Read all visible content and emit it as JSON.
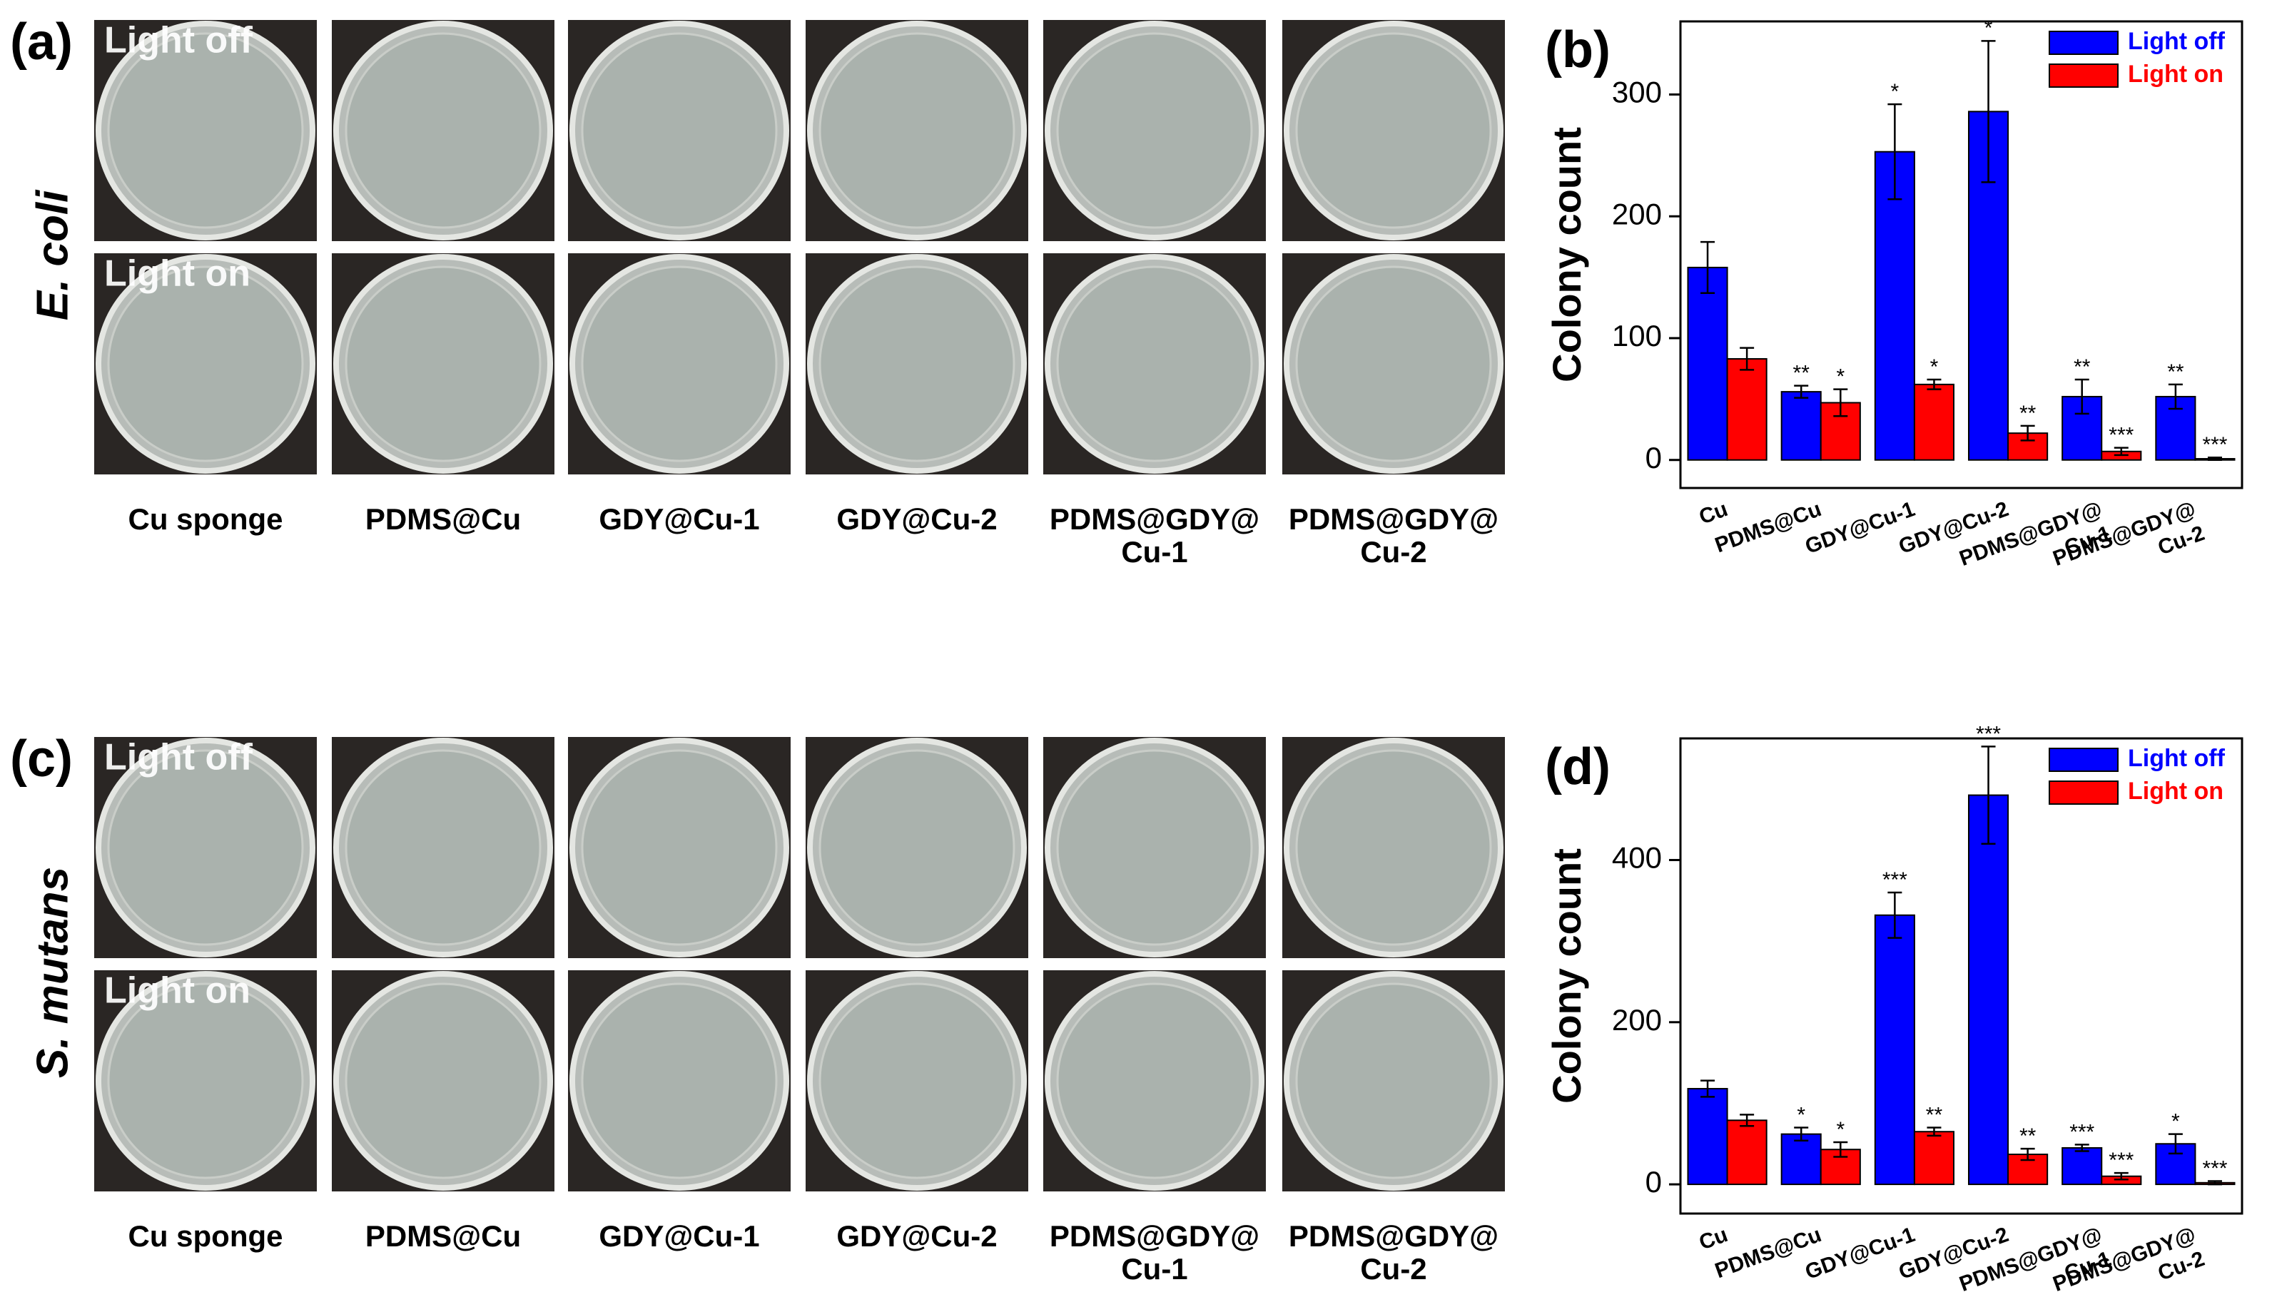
{
  "photo_panels": [
    {
      "label": "(a)",
      "organism": "E. coli",
      "rows": [
        "Light off",
        "Light on"
      ],
      "columns": [
        "Cu sponge",
        "PDMS@Cu",
        "GDY@Cu-1",
        "GDY@Cu-2",
        "PDMS@GDY@\nCu-1",
        "PDMS@GDY@\nCu-2"
      ]
    },
    {
      "label": "(c)",
      "organism": "S. mutans",
      "rows": [
        "Light off",
        "Light on"
      ],
      "columns": [
        "Cu sponge",
        "PDMS@Cu",
        "GDY@Cu-1",
        "GDY@Cu-2",
        "PDMS@GDY@\nCu-1",
        "PDMS@GDY@\nCu-2"
      ]
    }
  ],
  "chart_data": [
    {
      "type": "bar",
      "panel_label": "(b)",
      "y_label": "Colony count",
      "categories": [
        "Cu",
        "PDMS@Cu",
        "GDY@Cu-1",
        "GDY@Cu-2",
        "PDMS@GDY@\nCu-1",
        "PDMS@GDY@\nCu-2"
      ],
      "series": [
        {
          "name": "Light off",
          "color": "#0000ff",
          "values": [
            158,
            56,
            253,
            286,
            52,
            52
          ],
          "errors": [
            21,
            5,
            39,
            58,
            14,
            10
          ],
          "annotations": [
            null,
            "**",
            "*",
            "*",
            "**",
            "**"
          ]
        },
        {
          "name": "Light on",
          "color": "#ff0000",
          "values": [
            83,
            47,
            62,
            22,
            7,
            1
          ],
          "errors": [
            9,
            11,
            4,
            6,
            3,
            1
          ],
          "annotations": [
            null,
            "*",
            "*",
            "**",
            "***",
            "***"
          ]
        }
      ],
      "ylim": [
        -23,
        360
      ],
      "yticks": [
        0,
        100,
        200,
        300
      ],
      "legend": "upper right"
    },
    {
      "type": "bar",
      "panel_label": "(d)",
      "y_label": "Colony count",
      "categories": [
        "Cu",
        "PDMS@Cu",
        "GDY@Cu-1",
        "GDY@Cu-2",
        "PDMS@GDY@\nCu-1",
        "PDMS@GDY@\nCu-2"
      ],
      "series": [
        {
          "name": "Light off",
          "color": "#0000ff",
          "values": [
            118,
            62,
            332,
            480,
            45,
            50
          ],
          "errors": [
            10,
            8,
            28,
            60,
            4,
            12
          ],
          "annotations": [
            null,
            "*",
            "***",
            "***",
            "***",
            "*"
          ]
        },
        {
          "name": "Light on",
          "color": "#ff0000",
          "values": [
            79,
            43,
            65,
            37,
            10,
            2
          ],
          "errors": [
            7,
            9,
            5,
            7,
            4,
            2
          ],
          "annotations": [
            null,
            "*",
            "**",
            "**",
            "***",
            "***"
          ]
        }
      ],
      "ylim": [
        -36,
        550
      ],
      "yticks": [
        0,
        200,
        400
      ],
      "legend": "upper right"
    }
  ]
}
